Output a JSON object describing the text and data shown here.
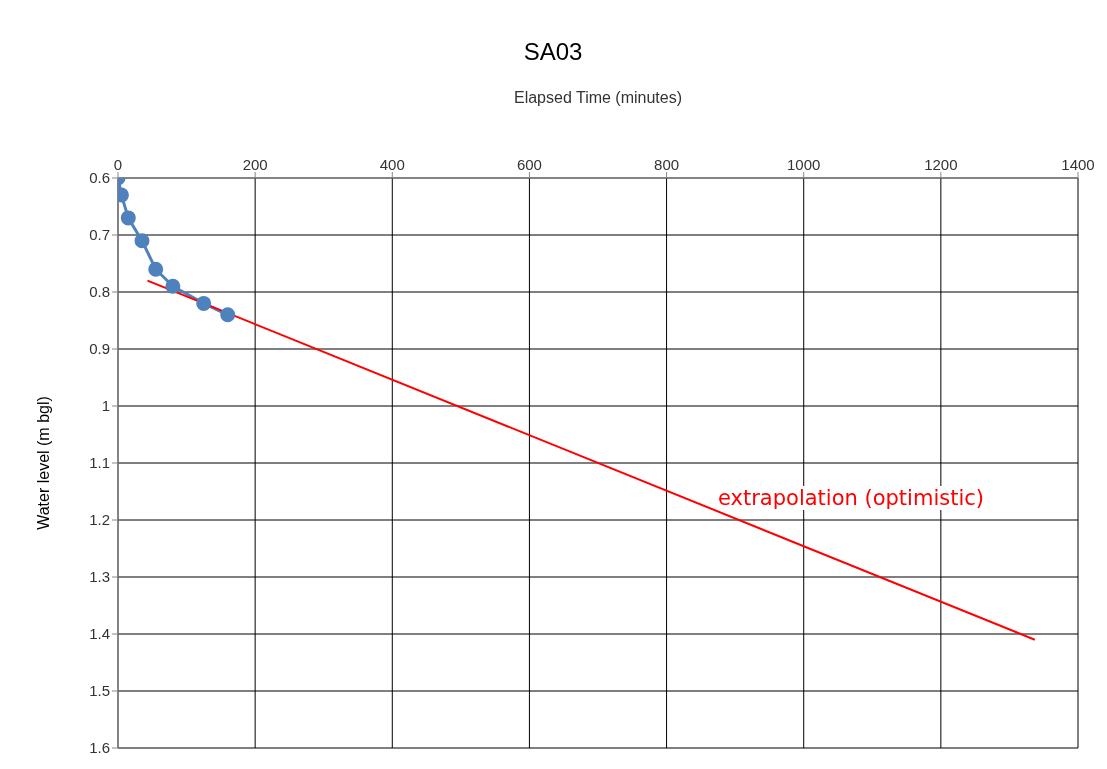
{
  "chart_data": {
    "type": "line",
    "title": "SA03",
    "xlabel": "Elapsed Time (minutes)",
    "ylabel": "Water level (m bgl)",
    "series": [
      {
        "type": "line",
        "color": "#4f81bd",
        "x": [
          0,
          5,
          15,
          35,
          55,
          80,
          125,
          160
        ],
        "values": [
          0.6,
          0.63,
          0.67,
          0.71,
          0.76,
          0.79,
          0.82,
          0.84
        ],
        "marker": "circle"
      },
      {
        "type": "line",
        "color": "#ff0000",
        "x": [
          43,
          1337
        ],
        "values": [
          0.78,
          1.41
        ],
        "marker": "none"
      }
    ],
    "annotations": [
      "extrapolation (optimistic)"
    ],
    "xlim": [
      0,
      1400
    ],
    "xticks": [
      0,
      200,
      400,
      600,
      800,
      1000,
      1200,
      1400
    ],
    "ylim": [
      1.6,
      0.6
    ],
    "yticks": [
      0.6,
      0.7,
      0.8,
      0.9,
      1,
      1.1,
      1.2,
      1.3,
      1.4,
      1.5,
      1.6
    ],
    "grid": true
  }
}
